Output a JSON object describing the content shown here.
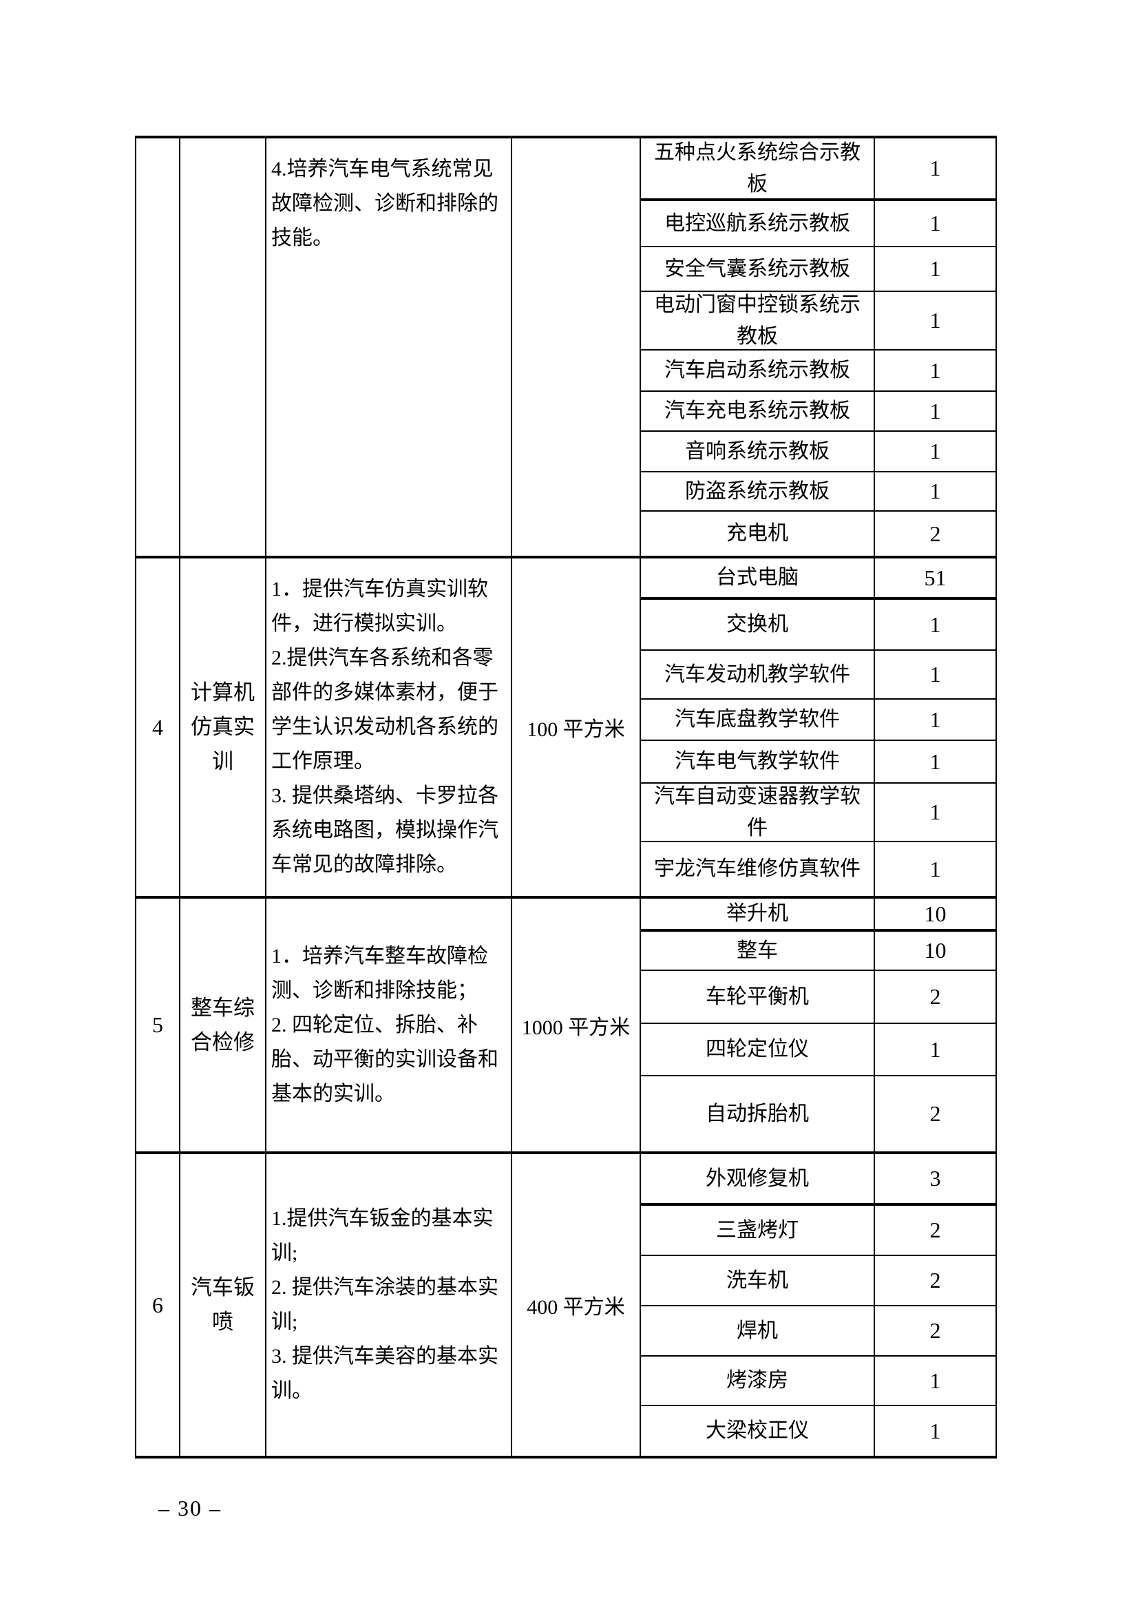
{
  "page": {
    "footer": "– 30 –"
  },
  "table": {
    "groups": [
      {
        "seq": "",
        "name": "",
        "area": "",
        "desc_valign": "top",
        "desc_paragraphs": [
          "4.培养汽车电气系统常见故障检测、诊断和排除的技能。"
        ],
        "equipment": [
          {
            "name": "五种点火系统综合示教板",
            "qty": "1"
          },
          {
            "name": "电控巡航系统示教板",
            "qty": "1"
          },
          {
            "name": "安全气囊系统示教板",
            "qty": "1"
          },
          {
            "name": "电动门窗中控锁系统示教板",
            "qty": "1"
          },
          {
            "name": "汽车启动系统示教板",
            "qty": "1"
          },
          {
            "name": "汽车充电系统示教板",
            "qty": "1"
          },
          {
            "name": "音响系统示教板",
            "qty": "1"
          },
          {
            "name": "防盗系统示教板",
            "qty": "1"
          },
          {
            "name": "充电机",
            "qty": "2"
          }
        ]
      },
      {
        "seq": "4",
        "name": "计算机仿真实训",
        "area": "100 平方米",
        "desc_valign": "center",
        "desc_paragraphs": [
          "1．提供汽车仿真实训软件，进行模拟实训。",
          "2.提供汽车各系统和各零部件的多媒体素材，便于学生认识发动机各系统的工作原理。",
          "3. 提供桑塔纳、卡罗拉各系统电路图，模拟操作汽车常见的故障排除。"
        ],
        "equipment": [
          {
            "name": "台式电脑",
            "qty": "51"
          },
          {
            "name": "交换机",
            "qty": "1"
          },
          {
            "name": "汽车发动机教学软件",
            "qty": "1"
          },
          {
            "name": "汽车底盘教学软件",
            "qty": "1"
          },
          {
            "name": "汽车电气教学软件",
            "qty": "1"
          },
          {
            "name": "汽车自动变速器教学软件",
            "qty": "1"
          },
          {
            "name": "宇龙汽车维修仿真软件",
            "qty": "1"
          }
        ]
      },
      {
        "seq": "5",
        "name": "整车综合检修",
        "area": "1000 平方米",
        "desc_valign": "center",
        "desc_paragraphs": [
          "1．培养汽车整车故障检测、诊断和排除技能；",
          "2. 四轮定位、拆胎、补胎、动平衡的实训设备和基本的实训。"
        ],
        "equipment": [
          {
            "name": "举升机",
            "qty": "10"
          },
          {
            "name": "整车",
            "qty": "10"
          },
          {
            "name": "车轮平衡机",
            "qty": "2"
          },
          {
            "name": "四轮定位仪",
            "qty": "1"
          },
          {
            "name": "自动拆胎机",
            "qty": "2"
          }
        ]
      },
      {
        "seq": "6",
        "name": "汽车钣喷",
        "area": "400 平方米",
        "desc_valign": "center",
        "desc_paragraphs": [
          "1.提供汽车钣金的基本实训;",
          "2. 提供汽车涂装的基本实训;",
          "3. 提供汽车美容的基本实训。"
        ],
        "equipment": [
          {
            "name": "外观修复机",
            "qty": "3"
          },
          {
            "name": "三盏烤灯",
            "qty": "2"
          },
          {
            "name": "洗车机",
            "qty": "2"
          },
          {
            "name": "焊机",
            "qty": "2"
          },
          {
            "name": "烤漆房",
            "qty": "1"
          },
          {
            "name": "大梁校正仪",
            "qty": "1"
          }
        ]
      }
    ]
  }
}
